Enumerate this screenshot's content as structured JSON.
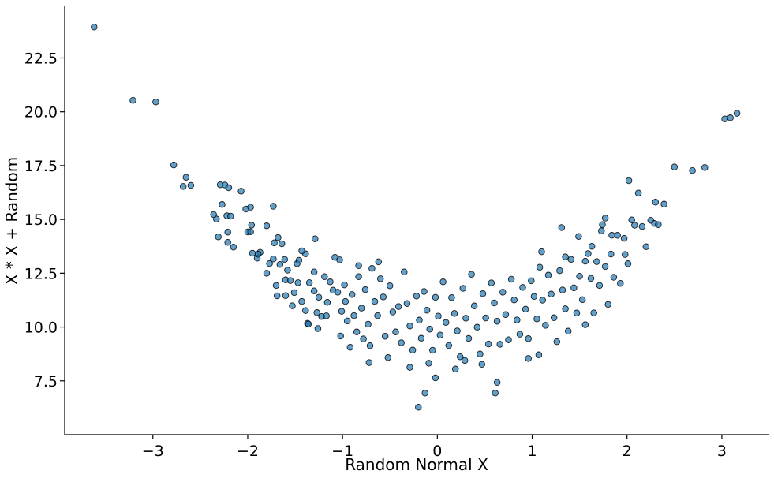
{
  "chart_data": {
    "type": "scatter",
    "title": "",
    "xlabel": "Random Normal X",
    "ylabel": "X * X + Random",
    "xlim": [
      -3.93,
      3.5
    ],
    "ylim": [
      5.0,
      24.9
    ],
    "xticks": [
      -3,
      -2,
      -1,
      0,
      1,
      2,
      3
    ],
    "xtick_labels": [
      "−3",
      "−2",
      "−1",
      "0",
      "1",
      "2",
      "3"
    ],
    "yticks": [
      7.5,
      10.0,
      12.5,
      15.0,
      17.5,
      20.0,
      22.5
    ],
    "ytick_labels": [
      "7.5",
      "10.0",
      "12.5",
      "15.0",
      "17.5",
      "20.0",
      "22.5"
    ],
    "grid": false,
    "spines": [
      "left",
      "bottom"
    ],
    "marker_color": "#1f77b4",
    "marker_edge_color": "#000000",
    "marker_alpha": 0.7,
    "series": [
      {
        "points": [
          [
            -3.62,
            23.94
          ],
          [
            -3.21,
            20.53
          ],
          [
            -2.97,
            20.46
          ],
          [
            -2.78,
            17.53
          ],
          [
            -2.65,
            16.96
          ],
          [
            -2.68,
            16.53
          ],
          [
            -2.6,
            16.58
          ],
          [
            -2.33,
            15.02
          ],
          [
            -2.36,
            15.23
          ],
          [
            -2.31,
            14.19
          ],
          [
            -2.29,
            16.61
          ],
          [
            -2.24,
            16.6
          ],
          [
            -2.27,
            15.69
          ],
          [
            -2.2,
            16.47
          ],
          [
            -2.22,
            15.17
          ],
          [
            -2.18,
            15.15
          ],
          [
            -2.15,
            13.71
          ],
          [
            -2.21,
            13.93
          ],
          [
            -2.21,
            14.41
          ],
          [
            -2.07,
            16.31
          ],
          [
            -2.02,
            15.48
          ],
          [
            -1.97,
            15.57
          ],
          [
            -2.0,
            14.42
          ],
          [
            -1.97,
            14.43
          ],
          [
            -1.95,
            13.43
          ],
          [
            -1.9,
            13.2
          ],
          [
            -1.87,
            13.47
          ],
          [
            -1.8,
            14.7
          ],
          [
            -1.73,
            15.61
          ],
          [
            -1.77,
            12.95
          ],
          [
            -1.8,
            12.5
          ],
          [
            -1.72,
            13.91
          ],
          [
            -1.73,
            13.16
          ],
          [
            -1.68,
            14.16
          ],
          [
            -1.64,
            13.87
          ],
          [
            -1.66,
            12.91
          ],
          [
            -1.61,
            13.14
          ],
          [
            -1.7,
            11.93
          ],
          [
            -1.69,
            11.45
          ],
          [
            -1.6,
            12.19
          ],
          [
            -1.6,
            11.46
          ],
          [
            -1.58,
            12.64
          ],
          [
            -1.55,
            12.16
          ],
          [
            -1.51,
            11.6
          ],
          [
            -1.53,
            10.99
          ],
          [
            -1.48,
            12.94
          ],
          [
            -1.46,
            13.1
          ],
          [
            -1.47,
            12.06
          ],
          [
            -1.39,
            13.4
          ],
          [
            -1.35,
            12.06
          ],
          [
            -1.43,
            11.19
          ],
          [
            -1.39,
            10.77
          ],
          [
            -1.37,
            10.17
          ],
          [
            -1.3,
            12.56
          ],
          [
            -1.29,
            14.1
          ],
          [
            -1.3,
            11.68
          ],
          [
            -1.25,
            11.38
          ],
          [
            -1.27,
            10.67
          ],
          [
            -1.22,
            10.49
          ],
          [
            -1.26,
            9.93
          ],
          [
            -1.19,
            12.34
          ],
          [
            -1.16,
            11.15
          ],
          [
            -1.17,
            10.52
          ],
          [
            -1.13,
            12.1
          ],
          [
            -1.1,
            11.71
          ],
          [
            -1.08,
            13.24
          ],
          [
            -1.03,
            13.12
          ],
          [
            -1.05,
            11.62
          ],
          [
            -1.01,
            10.73
          ],
          [
            -1.02,
            9.58
          ],
          [
            -0.98,
            11.96
          ],
          [
            -0.97,
            11.19
          ],
          [
            -0.95,
            10.28
          ],
          [
            -0.92,
            9.06
          ],
          [
            -0.9,
            11.51
          ],
          [
            -0.88,
            10.53
          ],
          [
            -0.85,
            9.77
          ],
          [
            -0.83,
            12.34
          ],
          [
            -0.8,
            10.88
          ],
          [
            -0.78,
            9.45
          ],
          [
            -0.76,
            11.74
          ],
          [
            -0.73,
            10.13
          ],
          [
            -0.71,
            9.13
          ],
          [
            -0.69,
            12.72
          ],
          [
            -0.66,
            11.19
          ],
          [
            -0.63,
            10.53
          ],
          [
            -0.6,
            12.24
          ],
          [
            -0.57,
            11.4
          ],
          [
            -0.55,
            9.57
          ],
          [
            -0.52,
            8.58
          ],
          [
            -0.5,
            11.92
          ],
          [
            -0.47,
            10.7
          ],
          [
            -0.44,
            9.77
          ],
          [
            -0.41,
            10.95
          ],
          [
            -0.38,
            9.27
          ],
          [
            -0.35,
            12.56
          ],
          [
            -0.32,
            11.09
          ],
          [
            -0.29,
            10.05
          ],
          [
            -0.26,
            8.93
          ],
          [
            -0.22,
            11.44
          ],
          [
            -0.19,
            10.32
          ],
          [
            -0.17,
            9.48
          ],
          [
            -0.14,
            11.65
          ],
          [
            -0.11,
            10.78
          ],
          [
            -0.08,
            9.9
          ],
          [
            -0.05,
            8.92
          ],
          [
            -0.02,
            11.38
          ],
          [
            0.01,
            10.51
          ],
          [
            0.03,
            9.63
          ],
          [
            0.06,
            12.1
          ],
          [
            0.09,
            10.21
          ],
          [
            0.12,
            9.14
          ],
          [
            0.15,
            11.37
          ],
          [
            0.18,
            10.63
          ],
          [
            0.21,
            9.82
          ],
          [
            0.24,
            8.62
          ],
          [
            0.27,
            11.8
          ],
          [
            0.3,
            10.41
          ],
          [
            0.33,
            9.47
          ],
          [
            0.36,
            12.45
          ],
          [
            0.39,
            10.98
          ],
          [
            0.42,
            9.99
          ],
          [
            0.45,
            8.75
          ],
          [
            0.48,
            11.55
          ],
          [
            0.51,
            10.42
          ],
          [
            0.54,
            9.21
          ],
          [
            0.57,
            12.05
          ],
          [
            0.6,
            11.12
          ],
          [
            0.63,
            10.27
          ],
          [
            0.66,
            9.2
          ],
          [
            0.69,
            11.62
          ],
          [
            0.72,
            10.58
          ],
          [
            0.75,
            9.41
          ],
          [
            0.78,
            12.22
          ],
          [
            0.81,
            11.26
          ],
          [
            0.84,
            10.33
          ],
          [
            0.87,
            9.67
          ],
          [
            0.9,
            11.84
          ],
          [
            0.93,
            10.83
          ],
          [
            0.96,
            9.46
          ],
          [
            0.99,
            12.15
          ],
          [
            1.02,
            11.42
          ],
          [
            1.05,
            10.38
          ],
          [
            1.08,
            12.78
          ],
          [
            1.11,
            11.25
          ],
          [
            1.14,
            10.08
          ],
          [
            1.17,
            12.41
          ],
          [
            1.2,
            11.53
          ],
          [
            1.23,
            10.43
          ],
          [
            1.26,
            9.32
          ],
          [
            1.29,
            12.62
          ],
          [
            1.32,
            11.72
          ],
          [
            1.35,
            10.85
          ],
          [
            1.38,
            9.81
          ],
          [
            1.41,
            13.14
          ],
          [
            1.44,
            11.82
          ],
          [
            1.47,
            10.65
          ],
          [
            1.5,
            12.36
          ],
          [
            1.53,
            11.27
          ],
          [
            1.56,
            10.11
          ],
          [
            1.59,
            13.41
          ],
          [
            1.62,
            12.26
          ],
          [
            1.65,
            10.66
          ],
          [
            1.68,
            13.04
          ],
          [
            1.71,
            11.93
          ],
          [
            1.74,
            14.76
          ],
          [
            1.77,
            12.81
          ],
          [
            1.8,
            11.05
          ],
          [
            1.83,
            13.39
          ],
          [
            1.86,
            12.31
          ],
          [
            1.9,
            14.26
          ],
          [
            1.93,
            12.03
          ],
          [
            1.97,
            14.12
          ],
          [
            2.01,
            12.94
          ],
          [
            2.02,
            16.8
          ],
          [
            2.05,
            14.98
          ],
          [
            2.08,
            14.73
          ],
          [
            2.12,
            16.22
          ],
          [
            2.16,
            14.67
          ],
          [
            2.2,
            13.73
          ],
          [
            2.25,
            14.96
          ],
          [
            2.3,
            15.8
          ],
          [
            2.29,
            14.81
          ],
          [
            2.33,
            14.76
          ],
          [
            2.39,
            15.71
          ],
          [
            2.5,
            17.44
          ],
          [
            2.69,
            17.27
          ],
          [
            2.82,
            17.41
          ],
          [
            3.03,
            19.67
          ],
          [
            3.09,
            19.72
          ],
          [
            3.16,
            19.93
          ],
          [
            -0.2,
            6.27
          ],
          [
            -0.13,
            6.93
          ],
          [
            0.61,
            6.93
          ],
          [
            0.63,
            7.43
          ],
          [
            -0.02,
            7.64
          ],
          [
            0.19,
            8.05
          ],
          [
            -0.29,
            8.13
          ],
          [
            0.47,
            8.27
          ],
          [
            -0.09,
            8.32
          ],
          [
            0.29,
            8.45
          ],
          [
            0.96,
            8.54
          ],
          [
            -0.72,
            8.35
          ],
          [
            -1.36,
            10.14
          ],
          [
            1.07,
            8.71
          ],
          [
            1.56,
            13.06
          ],
          [
            1.1,
            13.5
          ],
          [
            1.35,
            13.26
          ],
          [
            1.31,
            14.62
          ],
          [
            1.49,
            14.21
          ],
          [
            1.73,
            14.47
          ],
          [
            1.77,
            15.06
          ],
          [
            1.63,
            13.75
          ],
          [
            1.98,
            13.37
          ],
          [
            1.84,
            14.26
          ],
          [
            -0.62,
            13.03
          ],
          [
            -0.83,
            12.85
          ],
          [
            -1.43,
            13.54
          ],
          [
            -1.89,
            13.38
          ],
          [
            -1.96,
            14.73
          ]
        ]
      }
    ]
  }
}
